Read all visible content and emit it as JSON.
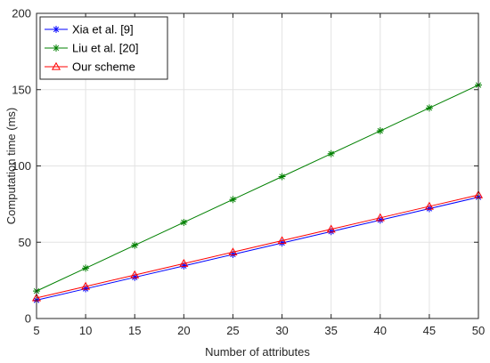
{
  "chart_data": {
    "type": "line",
    "title": "",
    "xlabel": "Number of attributes",
    "ylabel": "Computation time (ms)",
    "x": [
      5,
      10,
      15,
      20,
      25,
      30,
      35,
      40,
      45,
      50
    ],
    "xlim": [
      5,
      50
    ],
    "ylim": [
      0,
      200
    ],
    "xticks": [
      5,
      10,
      15,
      20,
      25,
      30,
      35,
      40,
      45,
      50
    ],
    "yticks": [
      0,
      50,
      100,
      150,
      200
    ],
    "grid": true,
    "legend_position": "top-left",
    "series": [
      {
        "name": "Xia et al. [9]",
        "color": "#0000ff",
        "marker": "asterisk",
        "values": [
          12,
          19.5,
          27,
          34.5,
          42,
          49.5,
          57,
          64.5,
          72,
          79.5
        ]
      },
      {
        "name": "Liu et al. [20]",
        "color": "#008000",
        "marker": "asterisk",
        "values": [
          18,
          33,
          48,
          63,
          78,
          93,
          108,
          123,
          138,
          153
        ]
      },
      {
        "name": "Our scheme",
        "color": "#ff0000",
        "marker": "triangle",
        "values": [
          13.5,
          21,
          28.5,
          36,
          43.5,
          51,
          58.5,
          66,
          73.5,
          81
        ]
      }
    ]
  }
}
